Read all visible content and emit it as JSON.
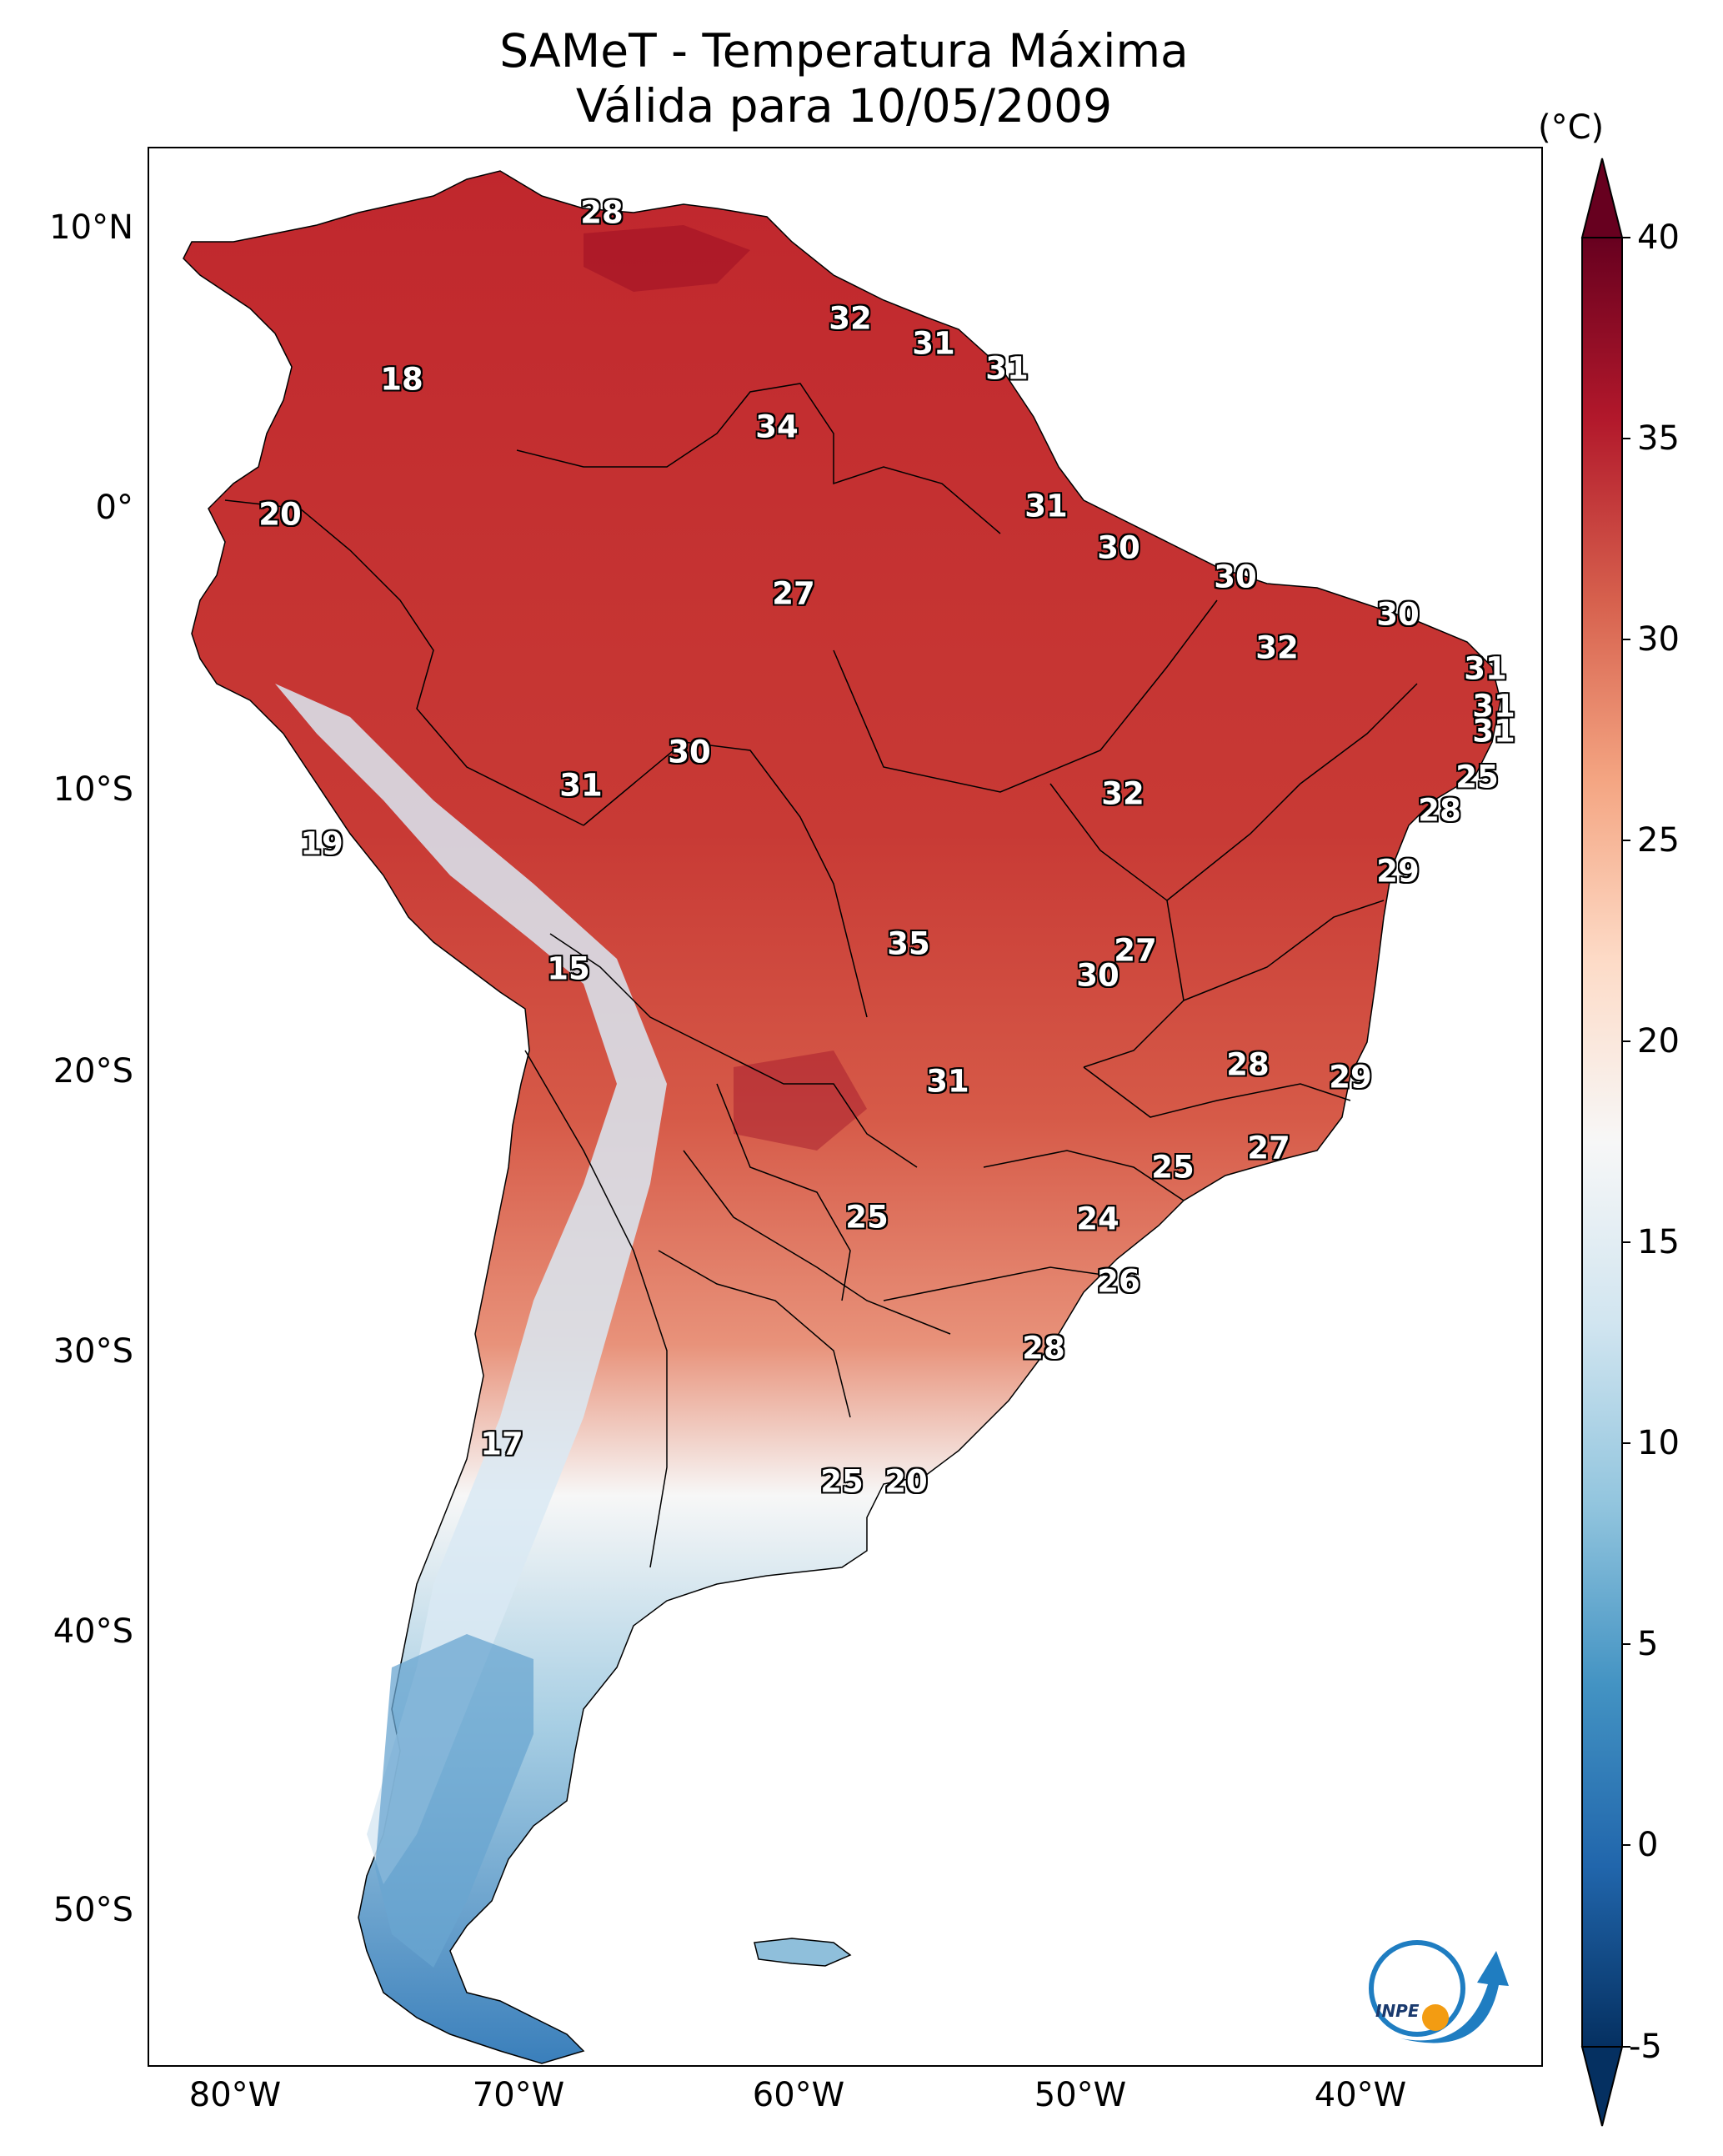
{
  "title": {
    "line1": "SAMeT - Temperatura Máxima",
    "line2": "Válida para 10/05/2009"
  },
  "axes": {
    "lat_ticks": [
      "10°N",
      "0°",
      "10°S",
      "20°S",
      "30°S",
      "40°S",
      "50°S"
    ],
    "lon_ticks": [
      "80°W",
      "70°W",
      "60°W",
      "50°W",
      "40°W"
    ]
  },
  "colorbar": {
    "unit": "(°C)",
    "min": -5,
    "max": 40,
    "ticks": [
      "40",
      "35",
      "30",
      "25",
      "20",
      "15",
      "10",
      "5",
      "0",
      "-5"
    ],
    "palette": [
      "#053061",
      "#2166ac",
      "#4393c3",
      "#92c5de",
      "#d1e5f0",
      "#f7f7f7",
      "#fddbc7",
      "#f4a582",
      "#d6604d",
      "#b2182b",
      "#67001f"
    ]
  },
  "temperature_labels": [
    {
      "value": "28"
    },
    {
      "value": "32"
    },
    {
      "value": "31"
    },
    {
      "value": "31"
    },
    {
      "value": "18"
    },
    {
      "value": "34"
    },
    {
      "value": "20"
    },
    {
      "value": "31"
    },
    {
      "value": "30"
    },
    {
      "value": "27"
    },
    {
      "value": "30"
    },
    {
      "value": "30"
    },
    {
      "value": "32"
    },
    {
      "value": "31"
    },
    {
      "value": "31"
    },
    {
      "value": "31"
    },
    {
      "value": "30"
    },
    {
      "value": "31"
    },
    {
      "value": "25"
    },
    {
      "value": "32"
    },
    {
      "value": "28"
    },
    {
      "value": "19"
    },
    {
      "value": "29"
    },
    {
      "value": "35"
    },
    {
      "value": "27"
    },
    {
      "value": "15"
    },
    {
      "value": "30"
    },
    {
      "value": "28"
    },
    {
      "value": "29"
    },
    {
      "value": "31"
    },
    {
      "value": "27"
    },
    {
      "value": "25"
    },
    {
      "value": "25"
    },
    {
      "value": "24"
    },
    {
      "value": "26"
    },
    {
      "value": "28"
    },
    {
      "value": "17"
    },
    {
      "value": "25"
    },
    {
      "value": "20"
    }
  ],
  "logo": {
    "text": "INPE"
  }
}
